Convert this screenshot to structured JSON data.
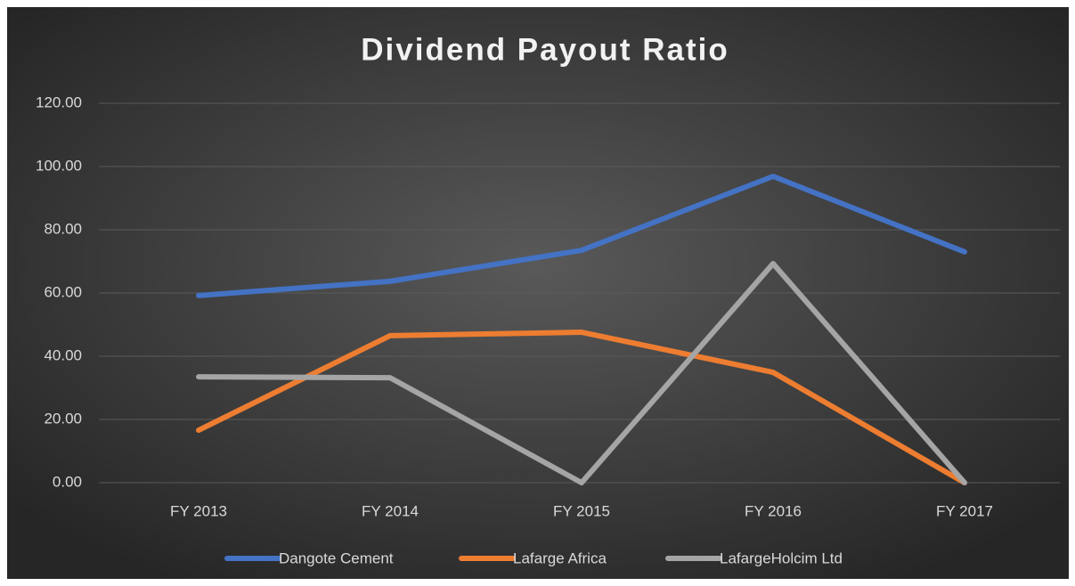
{
  "chart_data": {
    "type": "line",
    "title": "Dividend Payout Ratio",
    "categories": [
      "FY 2013",
      "FY 2014",
      "FY 2015",
      "FY 2016",
      "FY 2017"
    ],
    "series": [
      {
        "name": "Dangote Cement",
        "color": "#4472c4",
        "values": [
          59.2,
          63.7,
          73.5,
          96.9,
          73.0
        ]
      },
      {
        "name": "Lafarge Africa",
        "color": "#ed7d31",
        "values": [
          16.6,
          46.5,
          47.6,
          34.9,
          0
        ]
      },
      {
        "name": "LafargeHolcim Ltd",
        "color": "#a5a5a5",
        "values": [
          33.5,
          33.2,
          0,
          69.3,
          0
        ]
      }
    ],
    "ylim": [
      0,
      120
    ],
    "yticks": [
      {
        "value": 0,
        "label": "0.00"
      },
      {
        "value": 20,
        "label": "20.00"
      },
      {
        "value": 40,
        "label": "40.00"
      },
      {
        "value": 60,
        "label": "60.00"
      },
      {
        "value": 80,
        "label": "80.00"
      },
      {
        "value": 100,
        "label": "100.00"
      },
      {
        "value": 120,
        "label": "120.00"
      }
    ],
    "grid": true,
    "legend": "bottom"
  }
}
